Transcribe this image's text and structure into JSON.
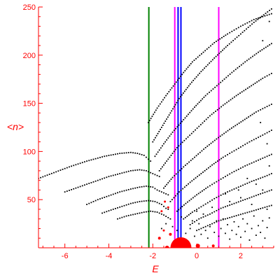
{
  "chart_data": {
    "type": "scatter",
    "xlabel": "E",
    "ylabel": "<n>",
    "xlim": [
      -7.2,
      3.5
    ],
    "ylim": [
      0,
      250
    ],
    "xticks": [
      -6,
      -4,
      -2,
      0,
      2
    ],
    "yticks": [
      50,
      100,
      150,
      200,
      250
    ],
    "colors": {
      "axes": "#ff0000",
      "points": "#000000",
      "green_line": "#008000",
      "magenta_line": "#ff00ff",
      "blue_line": "#0000ff",
      "red_markers": "#ff0000"
    },
    "vertical_lines": [
      {
        "x": -2.18,
        "color": "#008000"
      },
      {
        "x": -1.0,
        "color": "#ff00ff"
      },
      {
        "x": 1.0,
        "color": "#ff00ff"
      },
      {
        "x": -0.85,
        "color": "#0000ff"
      },
      {
        "x": -0.72,
        "color": "#0000ff"
      }
    ],
    "branches": [
      {
        "points": [
          [
            -7.2,
            72
          ],
          [
            -6.5,
            78
          ],
          [
            -5.8,
            84
          ],
          [
            -5.0,
            90
          ],
          [
            -4.2,
            95
          ],
          [
            -3.5,
            98
          ],
          [
            -3.0,
            99
          ],
          [
            -2.7,
            98
          ],
          [
            -2.4,
            96
          ],
          [
            -2.2,
            92
          ],
          [
            -2.1,
            90
          ]
        ]
      },
      {
        "points": [
          [
            -6.0,
            58
          ],
          [
            -5.5,
            62
          ],
          [
            -5.0,
            66
          ],
          [
            -4.5,
            70
          ],
          [
            -4.0,
            74
          ],
          [
            -3.5,
            77
          ],
          [
            -3.0,
            80
          ],
          [
            -2.6,
            81
          ],
          [
            -2.3,
            80
          ],
          [
            -2.1,
            78
          ],
          [
            -1.9,
            76
          ],
          [
            -1.7,
            74
          ]
        ]
      },
      {
        "points": [
          [
            -5.0,
            45
          ],
          [
            -4.5,
            50
          ],
          [
            -4.0,
            54
          ],
          [
            -3.5,
            58
          ],
          [
            -3.0,
            61
          ],
          [
            -2.6,
            63
          ],
          [
            -2.3,
            64
          ],
          [
            -2.0,
            63
          ],
          [
            -1.8,
            60
          ],
          [
            -1.5,
            57
          ],
          [
            -1.3,
            55
          ]
        ]
      },
      {
        "points": [
          [
            -4.3,
            36
          ],
          [
            -3.8,
            40
          ],
          [
            -3.4,
            43
          ],
          [
            -3.0,
            46
          ],
          [
            -2.6,
            48
          ],
          [
            -2.2,
            49
          ],
          [
            -1.9,
            48
          ],
          [
            -1.6,
            45
          ],
          [
            -1.4,
            41
          ]
        ]
      },
      {
        "points": [
          [
            -3.6,
            30
          ],
          [
            -3.2,
            33
          ],
          [
            -2.8,
            35
          ],
          [
            -2.4,
            37
          ],
          [
            -2.1,
            38
          ],
          [
            -1.8,
            37
          ],
          [
            -1.5,
            34
          ],
          [
            -1.2,
            30
          ]
        ]
      },
      {
        "points": [
          [
            -2.2,
            130
          ],
          [
            -1.8,
            145
          ],
          [
            -1.4,
            158
          ],
          [
            -1.0,
            170
          ],
          [
            -0.6,
            182
          ],
          [
            -0.2,
            193
          ],
          [
            0.3,
            203
          ],
          [
            0.8,
            213
          ],
          [
            1.4,
            222
          ],
          [
            2.0,
            230
          ],
          [
            2.6,
            237
          ],
          [
            3.4,
            243
          ]
        ]
      },
      {
        "points": [
          [
            -2.0,
            110
          ],
          [
            -1.6,
            125
          ],
          [
            -1.2,
            140
          ],
          [
            -0.8,
            155
          ],
          [
            -0.3,
            170
          ],
          [
            0.2,
            183
          ],
          [
            0.8,
            197
          ],
          [
            1.4,
            210
          ],
          [
            2.0,
            222
          ],
          [
            2.6,
            234
          ],
          [
            3.4,
            248
          ]
        ]
      },
      {
        "points": [
          [
            -1.9,
            95
          ],
          [
            -1.5,
            108
          ],
          [
            -1.1,
            120
          ],
          [
            -0.6,
            133
          ],
          [
            -0.1,
            146
          ],
          [
            0.4,
            158
          ],
          [
            1.0,
            170
          ],
          [
            1.6,
            182
          ],
          [
            2.2,
            193
          ],
          [
            2.8,
            203
          ],
          [
            3.4,
            212
          ]
        ]
      },
      {
        "points": [
          [
            -1.7,
            80
          ],
          [
            -1.3,
            92
          ],
          [
            -0.9,
            104
          ],
          [
            -0.4,
            115
          ],
          [
            0.1,
            126
          ],
          [
            0.6,
            137
          ],
          [
            1.2,
            148
          ],
          [
            1.8,
            158
          ],
          [
            2.4,
            167
          ],
          [
            3.0,
            176
          ],
          [
            3.4,
            181
          ]
        ]
      },
      {
        "points": [
          [
            -1.5,
            62
          ],
          [
            -1.1,
            73
          ],
          [
            -0.6,
            84
          ],
          [
            -0.1,
            94
          ],
          [
            0.4,
            104
          ],
          [
            0.9,
            113
          ],
          [
            1.5,
            123
          ],
          [
            2.1,
            132
          ],
          [
            2.7,
            141
          ],
          [
            3.4,
            149
          ]
        ]
      },
      {
        "points": [
          [
            -1.2,
            48
          ],
          [
            -0.8,
            58
          ],
          [
            -0.3,
            68
          ],
          [
            0.2,
            77
          ],
          [
            0.7,
            86
          ],
          [
            1.2,
            94
          ],
          [
            1.8,
            102
          ],
          [
            2.4,
            110
          ],
          [
            3.0,
            117
          ],
          [
            3.4,
            122
          ]
        ]
      },
      {
        "points": [
          [
            -0.9,
            38
          ],
          [
            -0.5,
            46
          ],
          [
            0.0,
            55
          ],
          [
            0.5,
            63
          ],
          [
            1.0,
            70
          ],
          [
            1.6,
            78
          ],
          [
            2.2,
            85
          ],
          [
            2.8,
            91
          ],
          [
            3.4,
            97
          ]
        ]
      },
      {
        "points": [
          [
            -0.6,
            30
          ],
          [
            -0.2,
            37
          ],
          [
            0.3,
            44
          ],
          [
            0.8,
            51
          ],
          [
            1.3,
            57
          ],
          [
            1.9,
            63
          ],
          [
            2.5,
            69
          ],
          [
            3.1,
            74
          ],
          [
            3.4,
            77
          ]
        ]
      },
      {
        "points": [
          [
            -0.3,
            24
          ],
          [
            0.1,
            30
          ],
          [
            0.6,
            35
          ],
          [
            1.1,
            41
          ],
          [
            1.7,
            46
          ],
          [
            2.3,
            51
          ],
          [
            2.9,
            56
          ],
          [
            3.4,
            60
          ]
        ]
      },
      {
        "points": [
          [
            0.0,
            18
          ],
          [
            0.5,
            23
          ],
          [
            1.0,
            28
          ],
          [
            1.6,
            32
          ],
          [
            2.2,
            36
          ],
          [
            2.8,
            40
          ],
          [
            3.4,
            44
          ]
        ]
      }
    ],
    "scatter_points": [
      [
        -1.6,
        20
      ],
      [
        -1.4,
        25
      ],
      [
        -1.3,
        40
      ],
      [
        -1.1,
        22
      ],
      [
        -0.9,
        18
      ],
      [
        -0.7,
        32
      ],
      [
        -0.5,
        15
      ],
      [
        -0.3,
        20
      ],
      [
        -0.1,
        12
      ],
      [
        0.1,
        25
      ],
      [
        0.2,
        14
      ],
      [
        0.4,
        18
      ],
      [
        0.5,
        10
      ],
      [
        0.6,
        22
      ],
      [
        0.8,
        16
      ],
      [
        0.9,
        28
      ],
      [
        1.0,
        12
      ],
      [
        1.1,
        20
      ],
      [
        1.2,
        30
      ],
      [
        1.3,
        15
      ],
      [
        1.4,
        24
      ],
      [
        1.5,
        9
      ],
      [
        1.6,
        18
      ],
      [
        1.7,
        27
      ],
      [
        1.8,
        14
      ],
      [
        1.9,
        22
      ],
      [
        2.0,
        11
      ],
      [
        2.1,
        30
      ],
      [
        2.2,
        17
      ],
      [
        2.3,
        25
      ],
      [
        2.4,
        8
      ],
      [
        2.5,
        20
      ],
      [
        2.6,
        33
      ],
      [
        2.7,
        13
      ],
      [
        2.8,
        23
      ],
      [
        2.9,
        16
      ],
      [
        3.0,
        28
      ],
      [
        3.1,
        10
      ],
      [
        3.2,
        21
      ],
      [
        3.3,
        31
      ],
      [
        0.3,
        35
      ],
      [
        0.7,
        42
      ],
      [
        1.5,
        48
      ],
      [
        2.0,
        52
      ],
      [
        2.5,
        45
      ],
      [
        3.0,
        60
      ],
      [
        3.2,
        40
      ],
      [
        -0.2,
        28
      ],
      [
        0.0,
        38
      ],
      [
        1.9,
        60
      ],
      [
        2.3,
        72
      ],
      [
        3.3,
        85
      ],
      [
        3.3,
        235
      ],
      [
        3.0,
        215
      ],
      [
        2.9,
        130
      ],
      [
        3.2,
        108
      ],
      [
        2.7,
        66
      ],
      [
        1.3,
        56
      ]
    ],
    "red_markers": [
      {
        "x": -1.45,
        "y": 48,
        "r": 1.5
      },
      {
        "x": -1.3,
        "y": 42,
        "r": 1.5
      },
      {
        "x": -1.6,
        "y": 38,
        "r": 1.5
      },
      {
        "x": -1.5,
        "y": 18,
        "r": 1.5
      },
      {
        "x": -1.7,
        "y": 10,
        "r": 2
      },
      {
        "x": -1.2,
        "y": 14,
        "r": 2
      },
      {
        "x": -1.0,
        "y": 6,
        "r": 3
      },
      {
        "x": -0.72,
        "y": 0,
        "r": 15
      },
      {
        "x": 0.05,
        "y": 2,
        "r": 3
      },
      {
        "x": 0.75,
        "y": 2,
        "r": 2
      },
      {
        "x": -1.35,
        "y": 0,
        "r": 3
      }
    ]
  }
}
